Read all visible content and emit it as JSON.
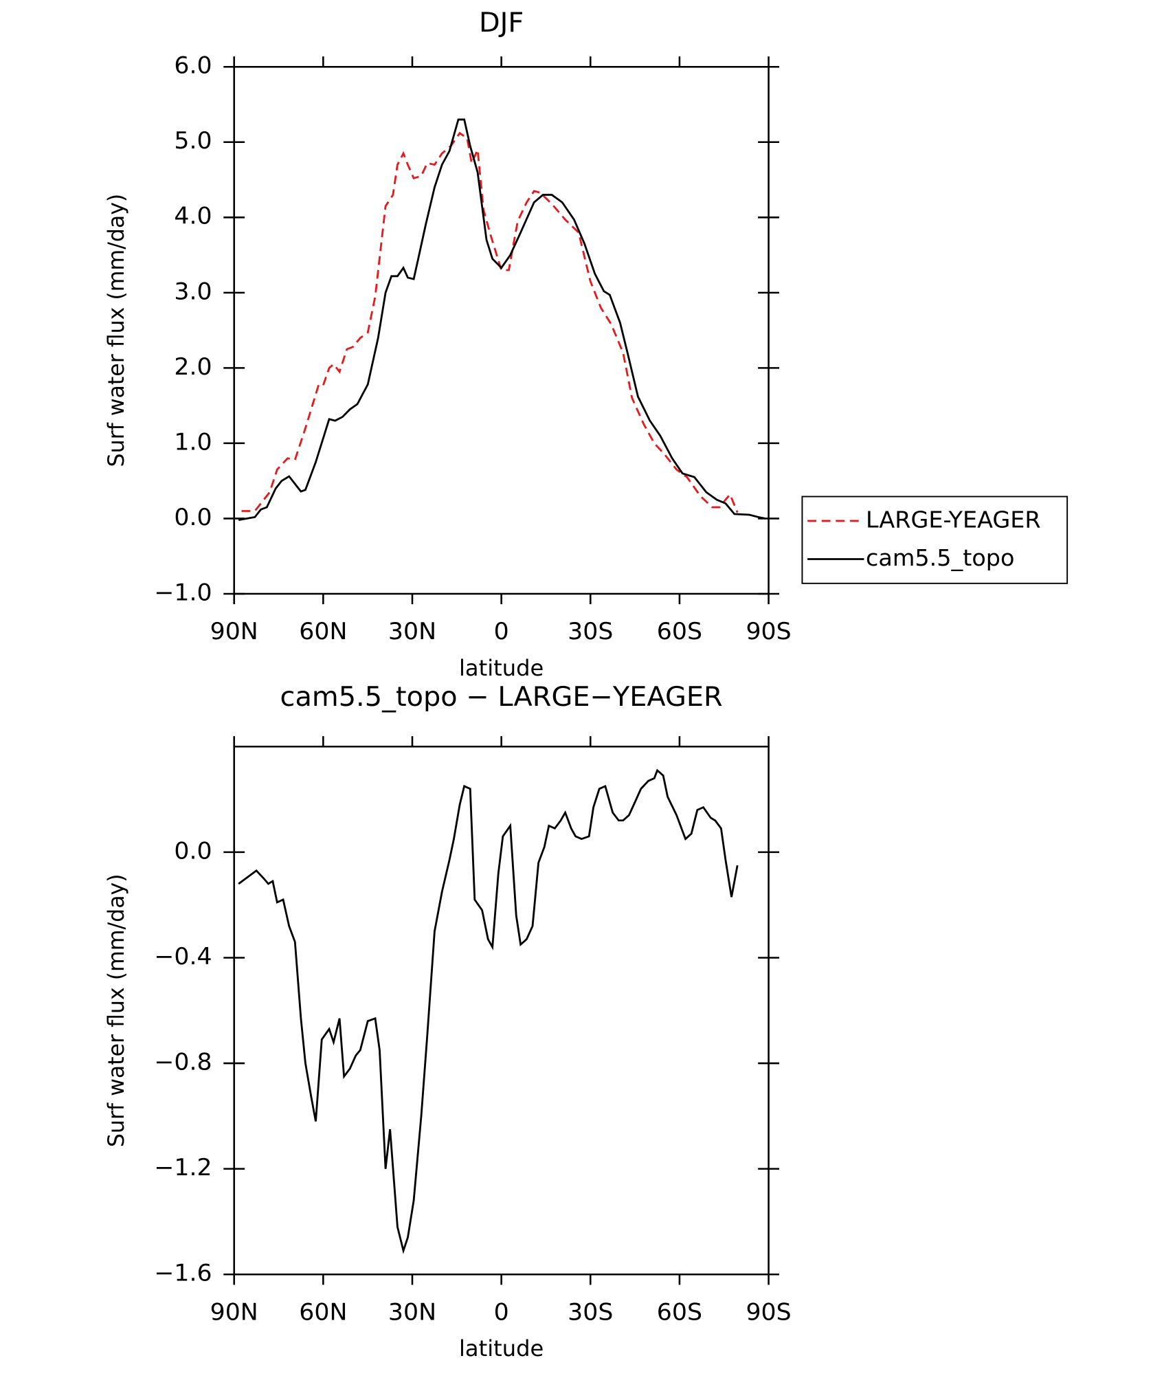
{
  "chart_data": [
    {
      "type": "line",
      "title": "DJF",
      "xlabel": "latitude",
      "ylabel": "Surf water flux (mm/day)",
      "xlim": [
        90,
        -90
      ],
      "xticks": [
        {
          "value": 90,
          "label": "90N"
        },
        {
          "value": 60,
          "label": "60N"
        },
        {
          "value": 30,
          "label": "30N"
        },
        0,
        {
          "value": -30,
          "label": "30S"
        },
        {
          "value": -60,
          "label": "60S"
        },
        {
          "value": -90,
          "label": "90S"
        }
      ],
      "ylim": [
        -1,
        6
      ],
      "yticks": [
        {
          "value": -1,
          "label": "−1.0"
        },
        {
          "value": 0,
          "label": "0.0"
        },
        {
          "value": 1,
          "label": "1.0"
        },
        {
          "value": 2,
          "label": "2.0"
        },
        {
          "value": 3,
          "label": "3.0"
        },
        {
          "value": 4,
          "label": "4.0"
        },
        {
          "value": 5,
          "label": "5.0"
        },
        {
          "value": 6,
          "label": "6.0"
        }
      ],
      "legend": "outside right",
      "series": [
        {
          "name": "LARGE-YEAGER",
          "color": "#e41a1c",
          "dash": true,
          "x": [
            87.5,
            83,
            81,
            78,
            75.5,
            72,
            69.5,
            66,
            61.5,
            60,
            58,
            56.5,
            54.5,
            52,
            50,
            47.5,
            45,
            42.5,
            39,
            36.5,
            35,
            33,
            31.5,
            29.5,
            27,
            25,
            22.5,
            20,
            17,
            14,
            11.5,
            10,
            8,
            6,
            3.5,
            0,
            -2.5,
            -5.5,
            -8.5,
            -11,
            -13,
            -17,
            -21.5,
            -26,
            -30,
            -33.5,
            -37,
            -41,
            -44,
            -48,
            -51.5,
            -55,
            -59,
            -62.5,
            -67,
            -71,
            -73.5,
            -75.5,
            -77,
            -79.5
          ],
          "values": [
            0.1,
            0.1,
            0.2,
            0.35,
            0.65,
            0.8,
            0.78,
            1.2,
            1.78,
            1.77,
            2.0,
            2.05,
            1.95,
            2.25,
            2.28,
            2.4,
            2.47,
            2.95,
            4.15,
            4.3,
            4.7,
            4.85,
            4.7,
            4.52,
            4.55,
            4.72,
            4.7,
            4.85,
            4.95,
            5.12,
            5.05,
            4.72,
            4.9,
            4.1,
            3.75,
            3.3,
            3.3,
            3.95,
            4.2,
            4.35,
            4.33,
            4.18,
            3.97,
            3.8,
            3.15,
            2.8,
            2.58,
            2.2,
            1.6,
            1.25,
            1.0,
            0.85,
            0.65,
            0.55,
            0.3,
            0.15,
            0.15,
            0.25,
            0.32,
            0.08
          ]
        },
        {
          "name": "cam5.5_topo",
          "color": "#000000",
          "dash": false,
          "x": [
            88.5,
            83,
            81,
            79,
            76,
            74,
            71.5,
            67.5,
            66,
            62.5,
            58,
            56,
            53.5,
            51,
            48.5,
            45,
            41.5,
            39,
            37,
            35,
            33,
            31.5,
            29.5,
            28,
            25.5,
            22.5,
            20,
            17.5,
            14.5,
            12.5,
            10.5,
            8,
            5,
            3,
            0,
            -3,
            -6.5,
            -11,
            -14,
            -17,
            -20.5,
            -24.5,
            -28,
            -31.5,
            -34.5,
            -36.5,
            -40,
            -42.5,
            -46,
            -50,
            -53.5,
            -57.5,
            -61,
            -65,
            -69,
            -72.5,
            -75.5,
            -78.5,
            -83.5,
            -86.5,
            -89
          ],
          "values": [
            -0.02,
            0.02,
            0.12,
            0.15,
            0.4,
            0.5,
            0.56,
            0.36,
            0.38,
            0.75,
            1.32,
            1.3,
            1.35,
            1.45,
            1.52,
            1.78,
            2.4,
            3.0,
            3.22,
            3.22,
            3.33,
            3.2,
            3.18,
            3.45,
            3.9,
            4.4,
            4.7,
            4.88,
            5.3,
            5.3,
            4.95,
            4.6,
            3.7,
            3.45,
            3.33,
            3.5,
            3.8,
            4.2,
            4.3,
            4.3,
            4.2,
            3.97,
            3.65,
            3.25,
            3.02,
            2.97,
            2.6,
            2.2,
            1.62,
            1.3,
            1.1,
            0.8,
            0.6,
            0.55,
            0.35,
            0.25,
            0.2,
            0.06,
            0.05,
            0.02,
            0.0
          ]
        }
      ]
    },
    {
      "type": "line",
      "title": "cam5.5_topo − LARGE−YEAGER",
      "xlabel": "latitude",
      "ylabel": "Surf water flux (mm/day)",
      "xlim": [
        90,
        -90
      ],
      "xticks": [
        {
          "value": 90,
          "label": "90N"
        },
        {
          "value": 60,
          "label": "60N"
        },
        {
          "value": 30,
          "label": "30N"
        },
        0,
        {
          "value": -30,
          "label": "30S"
        },
        {
          "value": -60,
          "label": "60S"
        },
        {
          "value": -90,
          "label": "90S"
        }
      ],
      "ylim": [
        -1.6,
        0.4
      ],
      "yticks": [
        {
          "value": -1.6,
          "label": "−1.6"
        },
        {
          "value": -1.2,
          "label": "−1.2"
        },
        {
          "value": -0.8,
          "label": "−0.8"
        },
        {
          "value": -0.4,
          "label": "−0.4"
        },
        {
          "value": 0,
          "label": "0.0"
        }
      ],
      "series": [
        {
          "color": "#000000",
          "dash": false,
          "x": [
            88.5,
            82.5,
            80,
            78.5,
            77,
            75.5,
            73.5,
            71.5,
            69.5,
            67.5,
            66,
            64,
            62.5,
            60.5,
            58,
            56.5,
            54.5,
            53,
            51,
            49,
            47.5,
            45,
            42.5,
            41,
            39,
            37.5,
            35,
            33,
            31.5,
            29.5,
            27,
            25,
            22.5,
            20,
            17.5,
            16,
            14,
            12.5,
            10.5,
            9,
            6.5,
            4.5,
            3,
            1,
            -0.5,
            -3,
            -5,
            -6.5,
            -8.5,
            -10.5,
            -12.5,
            -14.5,
            -16,
            -18,
            -20,
            -21.5,
            -23.5,
            -25,
            -27,
            -29.5,
            -31,
            -33,
            -35,
            -37.5,
            -39.5,
            -41,
            -43,
            -45,
            -47,
            -49.5,
            -51.5,
            -52.5,
            -54.5,
            -56,
            -59,
            -62,
            -64,
            -66,
            -68,
            -70.5,
            -72,
            -74,
            -75.5,
            -77.5,
            -79.5
          ],
          "values": [
            -0.12,
            -0.07,
            -0.1,
            -0.12,
            -0.11,
            -0.19,
            -0.18,
            -0.28,
            -0.34,
            -0.63,
            -0.8,
            -0.93,
            -1.02,
            -0.71,
            -0.67,
            -0.72,
            -0.63,
            -0.85,
            -0.82,
            -0.77,
            -0.75,
            -0.64,
            -0.63,
            -0.75,
            -1.2,
            -1.05,
            -1.42,
            -1.51,
            -1.46,
            -1.32,
            -1.0,
            -0.7,
            -0.3,
            -0.15,
            -0.03,
            0.05,
            0.18,
            0.25,
            0.24,
            -0.18,
            -0.22,
            -0.33,
            -0.36,
            -0.08,
            0.06,
            0.1,
            -0.24,
            -0.35,
            -0.33,
            -0.28,
            -0.04,
            0.02,
            0.1,
            0.09,
            0.12,
            0.15,
            0.09,
            0.06,
            0.05,
            0.06,
            0.17,
            0.24,
            0.25,
            0.15,
            0.12,
            0.12,
            0.14,
            0.19,
            0.24,
            0.27,
            0.28,
            0.31,
            0.29,
            0.21,
            0.14,
            0.05,
            0.07,
            0.16,
            0.17,
            0.13,
            0.12,
            0.09,
            -0.03,
            -0.17,
            -0.05
          ]
        }
      ]
    }
  ]
}
